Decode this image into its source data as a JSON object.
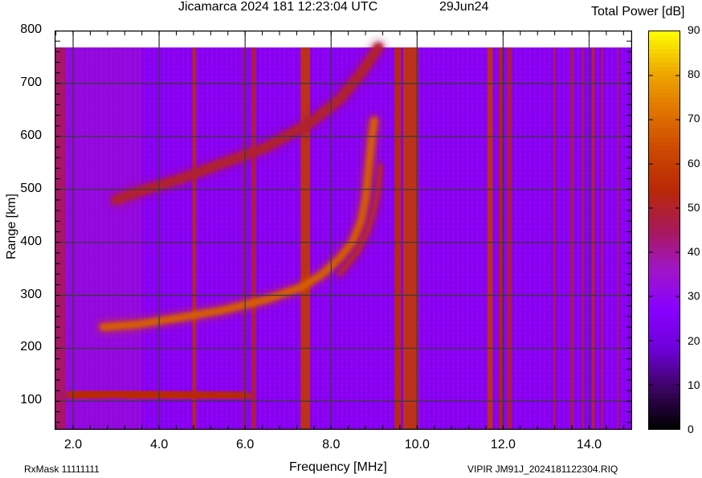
{
  "header": {
    "title": "Jicamarca 2024 181 12:23:04 UTC",
    "date": "29Jun24",
    "colorbar_title": "Total Power [dB]"
  },
  "footer": {
    "rxmask": "RxMask 11111111",
    "fileinfo": "VIPIR  JM91J_2024181122304.RIQ"
  },
  "colors": {
    "background_noise": "#8a00f5",
    "interference_band": "#b92a08",
    "echo_trace": "#e06a0a",
    "grid": "#3a3a3a",
    "colormap": [
      "#000000",
      "#3a0460",
      "#6d00d8",
      "#8800ff",
      "#a015c8",
      "#a8185a",
      "#b82806",
      "#cc4800",
      "#e07400",
      "#eeaa00",
      "#ffff00"
    ]
  },
  "chart_data": {
    "type": "heatmap",
    "title": "Jicamarca 2024 181 12:23:04 UTC",
    "subtitle": "29Jun24",
    "xlabel": "Frequency [MHz]",
    "ylabel": "Range [km]",
    "colorbar_label": "Total Power [dB]",
    "xlim": [
      1.57,
      15.0
    ],
    "ylim": [
      46,
      800
    ],
    "data_range_km_max": 768,
    "x_ticks": [
      "2.0",
      "4.0",
      "6.0",
      "8.0",
      "10.0",
      "12.0",
      "14.0"
    ],
    "x_tick_values": [
      2.0,
      4.0,
      6.0,
      8.0,
      10.0,
      12.0,
      14.0
    ],
    "y_ticks": [
      "100",
      "200",
      "300",
      "400",
      "500",
      "600",
      "700",
      "800"
    ],
    "y_tick_values": [
      100,
      200,
      300,
      400,
      500,
      600,
      700,
      800
    ],
    "colorbar_ticks": [
      "0",
      "10",
      "20",
      "30",
      "40",
      "50",
      "60",
      "70",
      "80",
      "90"
    ],
    "colorbar_range": [
      0,
      90
    ],
    "grid": true,
    "background_level_db": 28,
    "interference_bands_mhz": [
      {
        "f": 1.7,
        "width": 0.25,
        "db": 45
      },
      {
        "f": 4.82,
        "width": 0.08,
        "db": 55
      },
      {
        "f": 5.98,
        "width": 0.05,
        "db": 48
      },
      {
        "f": 6.2,
        "width": 0.1,
        "db": 50
      },
      {
        "f": 7.4,
        "width": 0.22,
        "db": 58
      },
      {
        "f": 9.55,
        "width": 0.15,
        "db": 55
      },
      {
        "f": 9.85,
        "width": 0.35,
        "db": 58
      },
      {
        "f": 11.7,
        "width": 0.12,
        "db": 58
      },
      {
        "f": 11.95,
        "width": 0.1,
        "db": 52
      },
      {
        "f": 12.15,
        "width": 0.1,
        "db": 50
      },
      {
        "f": 13.2,
        "width": 0.05,
        "db": 50
      },
      {
        "f": 13.6,
        "width": 0.06,
        "db": 52
      },
      {
        "f": 13.85,
        "width": 0.05,
        "db": 48
      },
      {
        "f": 14.1,
        "width": 0.06,
        "db": 55
      },
      {
        "f": 14.3,
        "width": 0.05,
        "db": 48
      },
      {
        "f": 14.68,
        "width": 0.04,
        "db": 46
      }
    ],
    "echo_traces": [
      {
        "name": "E-layer echo",
        "db": 55,
        "points": [
          [
            2.0,
            112
          ],
          [
            2.5,
            115
          ],
          [
            3.0,
            118
          ],
          [
            3.5,
            112
          ],
          [
            4.5,
            108
          ],
          [
            6.0,
            106
          ]
        ]
      },
      {
        "name": "F-layer 1-hop (O-mode)",
        "db": 68,
        "points": [
          [
            2.7,
            240
          ],
          [
            3.5,
            245
          ],
          [
            4.5,
            258
          ],
          [
            5.5,
            272
          ],
          [
            6.5,
            292
          ],
          [
            7.3,
            315
          ],
          [
            7.8,
            340
          ],
          [
            8.2,
            370
          ],
          [
            8.5,
            400
          ],
          [
            8.7,
            440
          ],
          [
            8.8,
            480
          ],
          [
            8.85,
            520
          ],
          [
            8.9,
            560
          ],
          [
            8.95,
            600
          ],
          [
            9.0,
            630
          ]
        ]
      },
      {
        "name": "F-layer 1-hop (X-mode branch)",
        "db": 58,
        "points": [
          [
            8.2,
            340
          ],
          [
            8.6,
            380
          ],
          [
            8.85,
            420
          ],
          [
            9.0,
            460
          ],
          [
            9.1,
            500
          ],
          [
            9.15,
            545
          ]
        ]
      },
      {
        "name": "F-layer 2-hop",
        "db": 50,
        "points": [
          [
            3.0,
            480
          ],
          [
            3.5,
            495
          ],
          [
            4.5,
            520
          ],
          [
            5.5,
            550
          ],
          [
            6.5,
            580
          ],
          [
            7.5,
            625
          ],
          [
            8.2,
            670
          ],
          [
            8.7,
            720
          ],
          [
            9.1,
            768
          ]
        ]
      }
    ]
  }
}
